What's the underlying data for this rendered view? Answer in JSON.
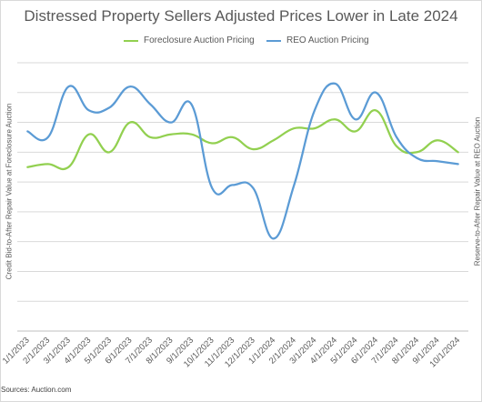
{
  "chart_data": {
    "type": "line",
    "title": "Distressed Property Sellers Adjusted Prices Lower in Late 2024",
    "ylabel_left": "Credit Bid-to-After Repair Value at Foreclosure Auction",
    "ylabel_right": "Reserve-to-After Repair Value at REO Auction",
    "categories": [
      "1/1/2023",
      "2/1/2023",
      "3/1/2023",
      "4/1/2023",
      "5/1/2023",
      "6/1/2023",
      "7/1/2023",
      "8/1/2023",
      "9/1/2023",
      "10/1/2023",
      "11/1/2023",
      "12/1/2023",
      "1/1/2024",
      "2/1/2024",
      "3/1/2024",
      "4/1/2024",
      "5/1/2024",
      "6/1/2024",
      "7/1/2024",
      "8/1/2024",
      "9/1/2024",
      "10/1/2024"
    ],
    "series": [
      {
        "name": "Foreclosure Auction Pricing",
        "color": "#92d050",
        "values": [
          5.5,
          5.6,
          5.5,
          6.6,
          6.0,
          7.0,
          6.5,
          6.6,
          6.6,
          6.3,
          6.5,
          6.1,
          6.4,
          6.8,
          6.8,
          7.1,
          6.7,
          7.4,
          6.2,
          6.0,
          6.4,
          6.0
        ]
      },
      {
        "name": "REO Auction Pricing",
        "color": "#5b9bd5",
        "values": [
          6.7,
          6.5,
          8.2,
          7.4,
          7.5,
          8.2,
          7.6,
          7.0,
          7.6,
          4.8,
          4.9,
          4.8,
          3.1,
          4.9,
          7.4,
          8.3,
          7.1,
          8.0,
          6.5,
          5.8,
          5.7,
          5.6
        ]
      }
    ],
    "ylim": [
      0,
      9
    ],
    "grid": true,
    "legend_position": "top",
    "source": "Sources: Auction.com"
  }
}
